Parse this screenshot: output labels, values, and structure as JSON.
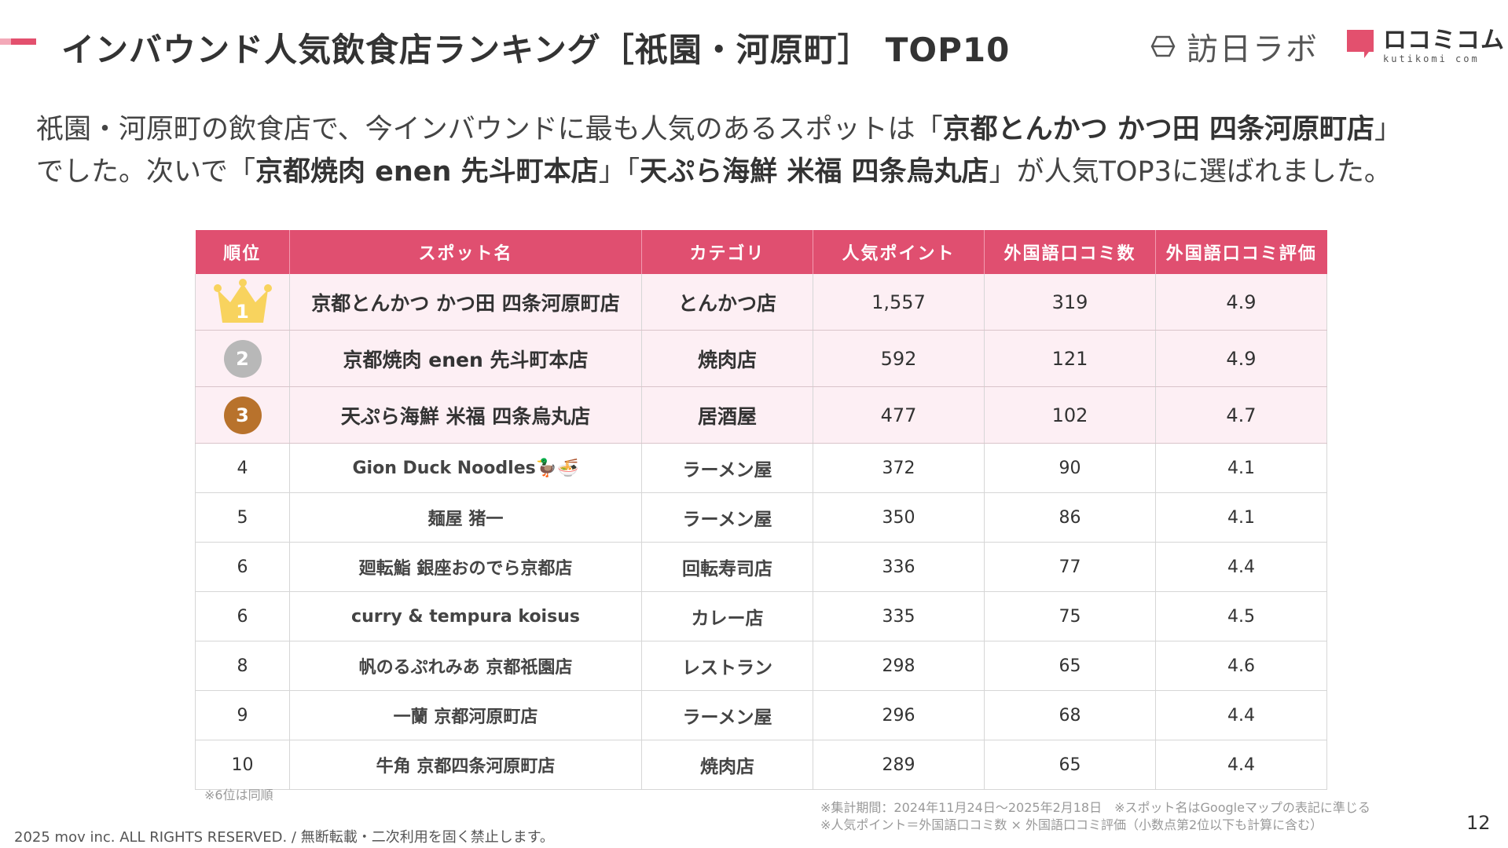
{
  "title": {
    "main": "インバウンド人気飲食店ランキング［祇園・河原町］",
    "suffix": "TOP10"
  },
  "logos": {
    "logo1_text": "訪日ラボ",
    "logo2_text": "ロコミコム",
    "logo2_sub": "kutikomi com",
    "brand_color": "#e3506e"
  },
  "lead": {
    "p1": "祇園・河原町の飲食店で、今インバウンドに最も人気のあるスポットは「",
    "b1": "京都とんかつ かつ田 四条河原町店",
    "p2": "」",
    "p3": "でした。次いで「",
    "b2": "京都焼肉 enen 先斗町本店",
    "p4": "」「",
    "b3": "天ぷら海鮮 米福 四条烏丸店",
    "p5": "」が人気TOP3に選ばれました。"
  },
  "table": {
    "headers": [
      "順位",
      "スポット名",
      "カテゴリ",
      "人気ポイント",
      "外国語口コミ数",
      "外国語口コミ評価"
    ],
    "top_rows": [
      {
        "rank": "1",
        "name": "京都とんかつ かつ田 四条河原町店",
        "category": "とんかつ店",
        "points": "1,557",
        "reviews": "319",
        "rating": "4.9",
        "medal": "gold-crown"
      },
      {
        "rank": "2",
        "name": "京都焼肉 enen 先斗町本店",
        "category": "焼肉店",
        "points": "592",
        "reviews": "121",
        "rating": "4.9",
        "medal": "silver"
      },
      {
        "rank": "3",
        "name": "天ぷら海鮮 米福 四条烏丸店",
        "category": "居酒屋",
        "points": "477",
        "reviews": "102",
        "rating": "4.7",
        "medal": "bronze"
      }
    ],
    "rows": [
      {
        "rank": "4",
        "name": "Gion Duck Noodles🦆🍜",
        "category": "ラーメン屋",
        "points": "372",
        "reviews": "90",
        "rating": "4.1"
      },
      {
        "rank": "5",
        "name": "麺屋 猪一",
        "category": "ラーメン屋",
        "points": "350",
        "reviews": "86",
        "rating": "4.1"
      },
      {
        "rank": "6",
        "name": "廻転鮨 銀座おのでら京都店",
        "category": "回転寿司店",
        "points": "336",
        "reviews": "77",
        "rating": "4.4"
      },
      {
        "rank": "6",
        "name": "curry & tempura koisus",
        "category": "カレー店",
        "points": "335",
        "reviews": "75",
        "rating": "4.5"
      },
      {
        "rank": "8",
        "name": "帆のるぷれみあ 京都祇園店",
        "category": "レストラン",
        "points": "298",
        "reviews": "65",
        "rating": "4.6"
      },
      {
        "rank": "9",
        "name": "一蘭 京都河原町店",
        "category": "ラーメン屋",
        "points": "296",
        "reviews": "68",
        "rating": "4.4"
      },
      {
        "rank": "10",
        "name": "牛角 京都四条河原町店",
        "category": "焼肉店",
        "points": "289",
        "reviews": "65",
        "rating": "4.4"
      }
    ],
    "header_color": "#e04f70",
    "top_row_color": "#fdeff4"
  },
  "notes": {
    "tie": "※6位は同順",
    "period": "※集計期間：2024年11月24日〜2025年2月18日　※スポット名はGoogleマップの表記に準じる",
    "formula": "※人気ポイント＝外国語口コミ数 × 外国語口コミ評価（小数点第2位以下も計算に含む）"
  },
  "footer": "2025 mov inc. ALL RIGHTS RESERVED. / 無断転載・二次利用を固く禁止します。",
  "page_number": "12"
}
